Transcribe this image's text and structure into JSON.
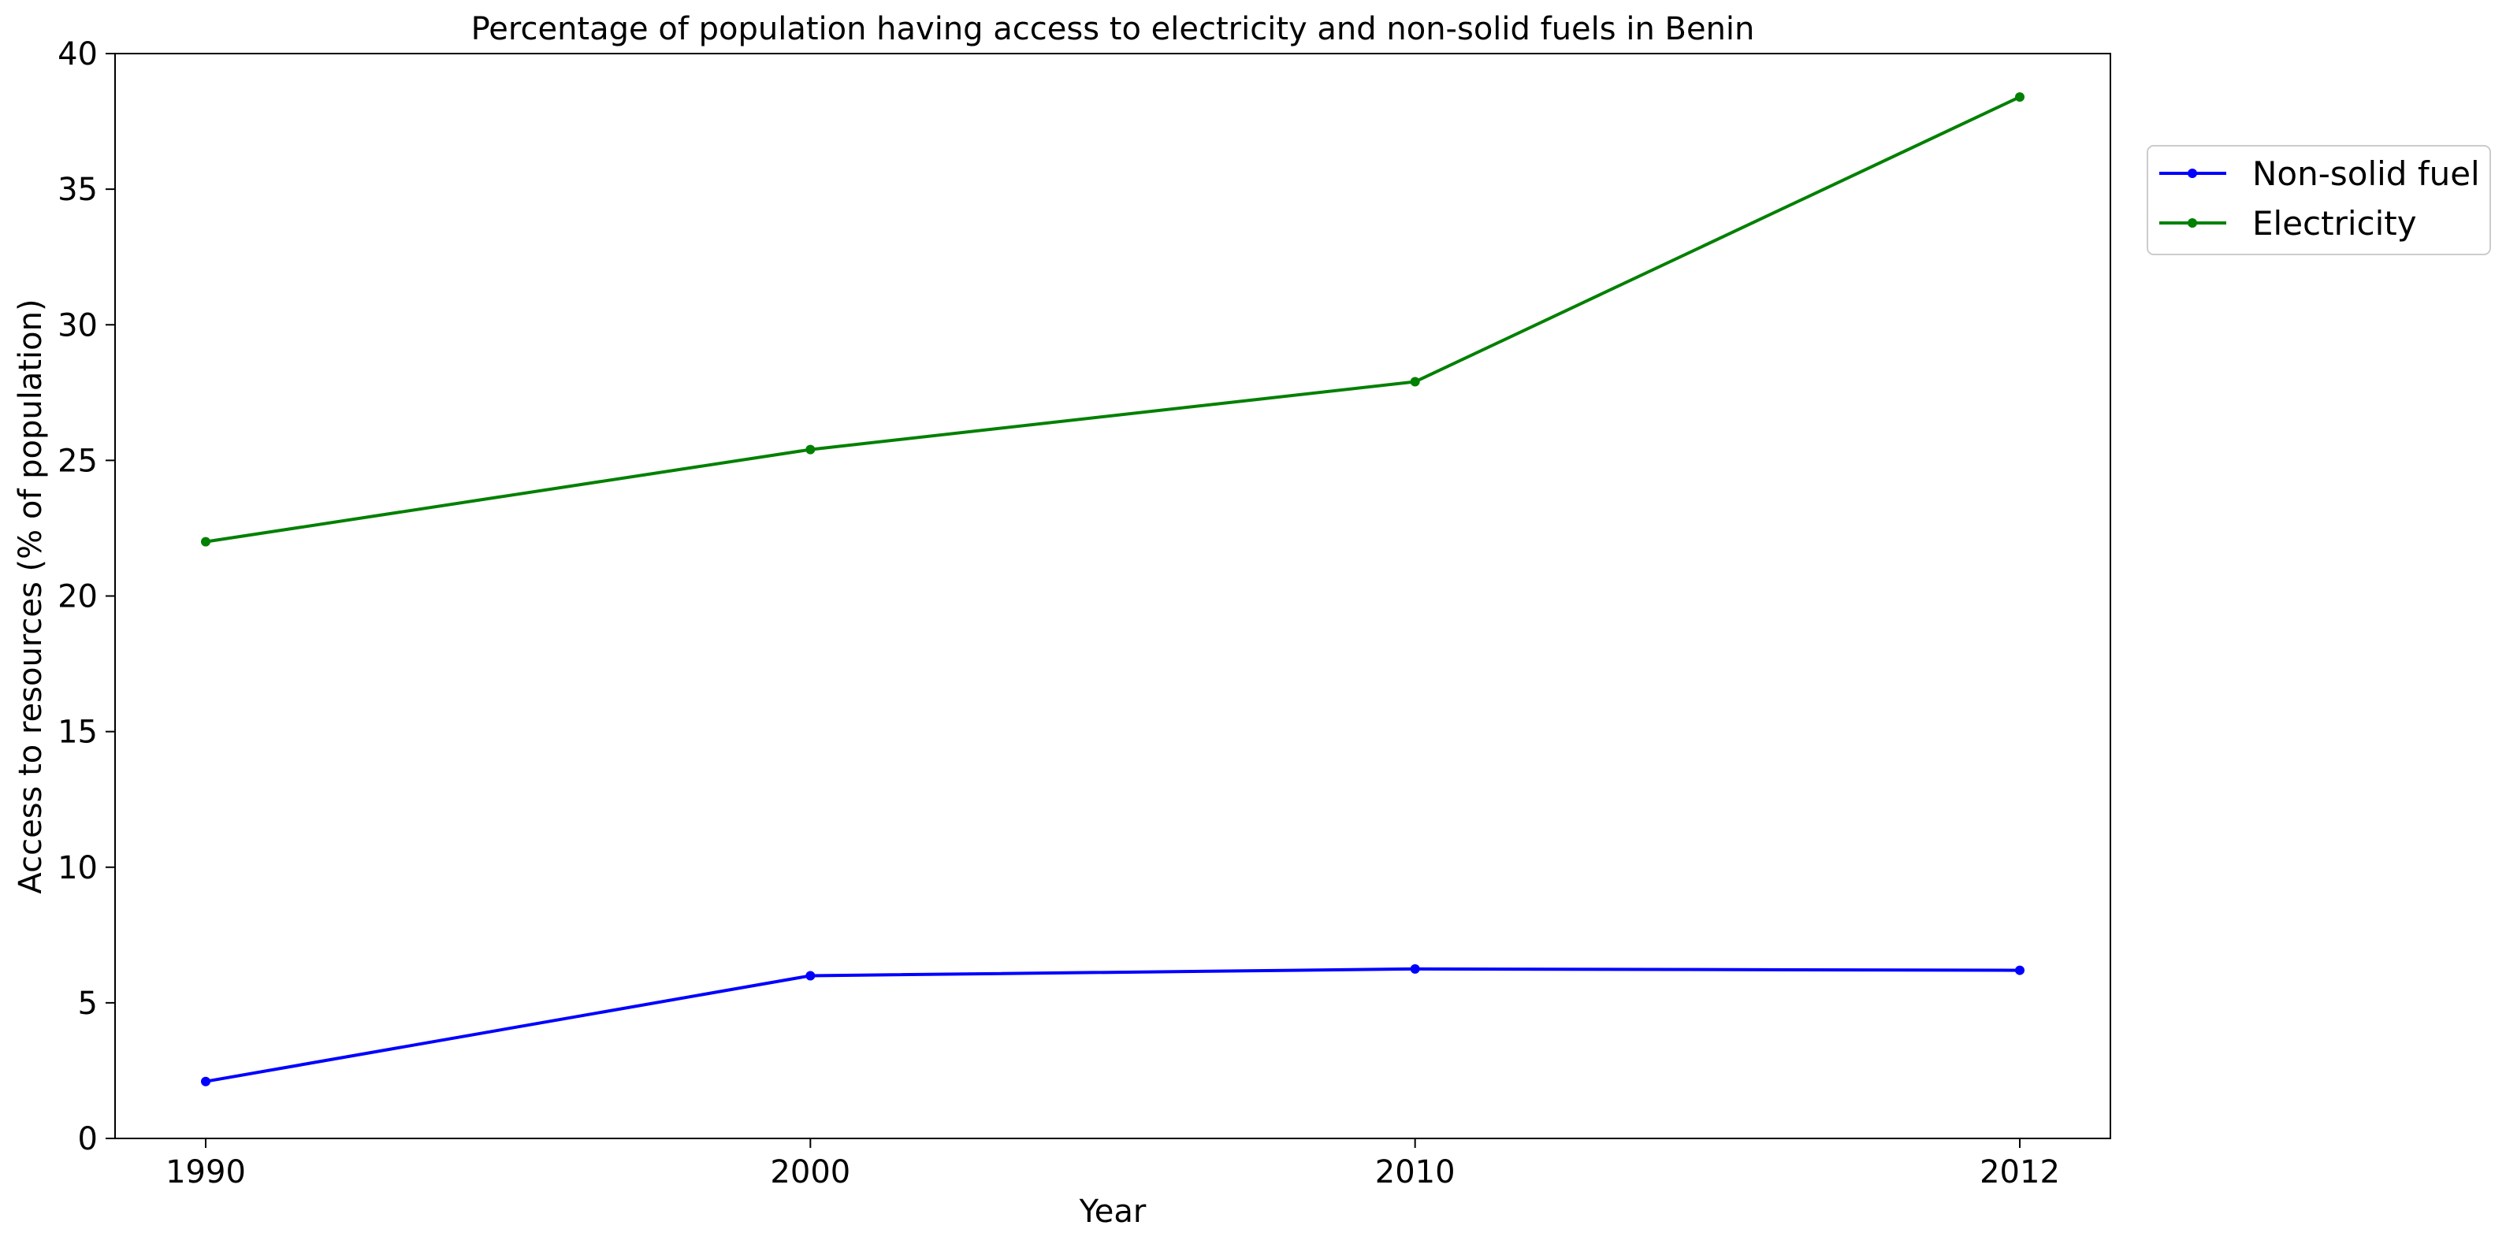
{
  "chart_data": {
    "type": "line",
    "title": "Percentage of population having access to electricity and non-solid fuels in Benin",
    "xlabel": "Year",
    "ylabel": "Access to resources (% of population)",
    "categories": [
      "1990",
      "2000",
      "2010",
      "2012"
    ],
    "ylim": [
      0,
      40
    ],
    "yticks": [
      "0",
      "5",
      "10",
      "15",
      "20",
      "25",
      "30",
      "35",
      "40"
    ],
    "grid": false,
    "legend_position": "outside-top-right",
    "series": [
      {
        "name": "Non-solid fuel",
        "color": "#0000ff",
        "values": [
          2.1,
          6.0,
          6.25,
          6.2
        ]
      },
      {
        "name": "Electricity",
        "color": "#008000",
        "values": [
          22.0,
          25.4,
          27.9,
          38.4
        ]
      }
    ]
  }
}
